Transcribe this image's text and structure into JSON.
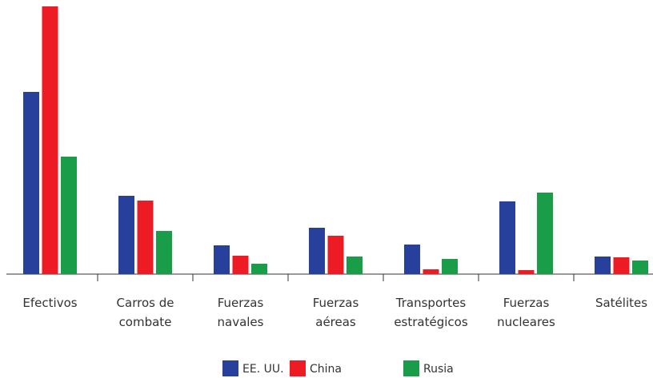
{
  "chart_data": {
    "type": "bar",
    "categories": [
      "Efectivos",
      "Carros de\ncombate",
      "Fuerzas\nnavales",
      "Fuerzas\naéreas",
      "Transportes\nestratégicos",
      "Fuerzas\nnucleares",
      "Satélites"
    ],
    "series": [
      {
        "name": "EE. UU.",
        "color": "#27409b",
        "values": [
          228,
          98,
          36,
          58,
          37,
          91,
          22
        ]
      },
      {
        "name": "China",
        "color": "#ed1c24",
        "values": [
          335,
          92,
          23,
          48,
          6,
          5,
          21
        ]
      },
      {
        "name": "Rusia",
        "color": "#1a9d48",
        "values": [
          147,
          54,
          13,
          22,
          19,
          102,
          17
        ]
      }
    ],
    "ylim": [
      0,
      335
    ]
  }
}
